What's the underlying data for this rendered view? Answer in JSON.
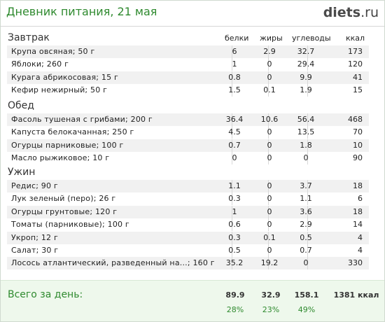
{
  "header": {
    "title": "Дневник питания, 21 мая",
    "logo_main": "diets",
    "logo_tld": ".ru"
  },
  "columns": {
    "protein": "белки",
    "fat": "жиры",
    "carbs": "углеводы",
    "kcal": "ккал"
  },
  "meals": [
    {
      "name": "Завтрак",
      "items": [
        {
          "name": "Крупа овсяная; 50 г",
          "p": "6",
          "f": "2.9",
          "c": "32.7",
          "k": "173"
        },
        {
          "name": "Яблоки; 260 г",
          "p": "1",
          "f": "0",
          "c": "29.4",
          "k": "120"
        },
        {
          "name": "Курага абрикосовая; 15 г",
          "p": "0.8",
          "f": "0",
          "c": "9.9",
          "k": "41"
        },
        {
          "name": "Кефир нежирный; 50 г",
          "p": "1.5",
          "f": "0.1",
          "c": "1.9",
          "k": "15"
        }
      ]
    },
    {
      "name": "Обед",
      "items": [
        {
          "name": "Фасоль тушеная с грибами; 200 г",
          "p": "36.4",
          "f": "10.6",
          "c": "56.4",
          "k": "468"
        },
        {
          "name": "Капуста белокачанная; 250 г",
          "p": "4.5",
          "f": "0",
          "c": "13.5",
          "k": "70"
        },
        {
          "name": "Огурцы парниковые; 100 г",
          "p": "0.7",
          "f": "0",
          "c": "1.8",
          "k": "10"
        },
        {
          "name": "Масло рыжиковое; 10 г",
          "p": "0",
          "f": "0",
          "c": "0",
          "k": "90"
        }
      ]
    },
    {
      "name": "Ужин",
      "items": [
        {
          "name": "Редис; 90 г",
          "p": "1.1",
          "f": "0",
          "c": "3.7",
          "k": "18"
        },
        {
          "name": "Лук зеленый (перо); 26 г",
          "p": "0.3",
          "f": "0",
          "c": "1.1",
          "k": "6"
        },
        {
          "name": "Огурцы грунтовые; 120 г",
          "p": "1",
          "f": "0",
          "c": "3.6",
          "k": "18"
        },
        {
          "name": "Томаты (парниковые); 100 г",
          "p": "0.6",
          "f": "0",
          "c": "2.9",
          "k": "14"
        },
        {
          "name": "Укроп; 12 г",
          "p": "0.3",
          "f": "0.1",
          "c": "0.5",
          "k": "4"
        },
        {
          "name": "Салат; 30 г",
          "p": "0.5",
          "f": "0",
          "c": "0.7",
          "k": "4"
        },
        {
          "name": "Лосось атлантический, разведенный на...; 160 г",
          "p": "35.2",
          "f": "19.2",
          "c": "0",
          "k": "330"
        }
      ]
    }
  ],
  "total": {
    "label": "Всего за день:",
    "protein": "89.9",
    "fat": "32.9",
    "carbs": "158.1",
    "kcal": "1381 ккал",
    "protein_pct": "28%",
    "fat_pct": "23%",
    "carbs_pct": "49%"
  }
}
